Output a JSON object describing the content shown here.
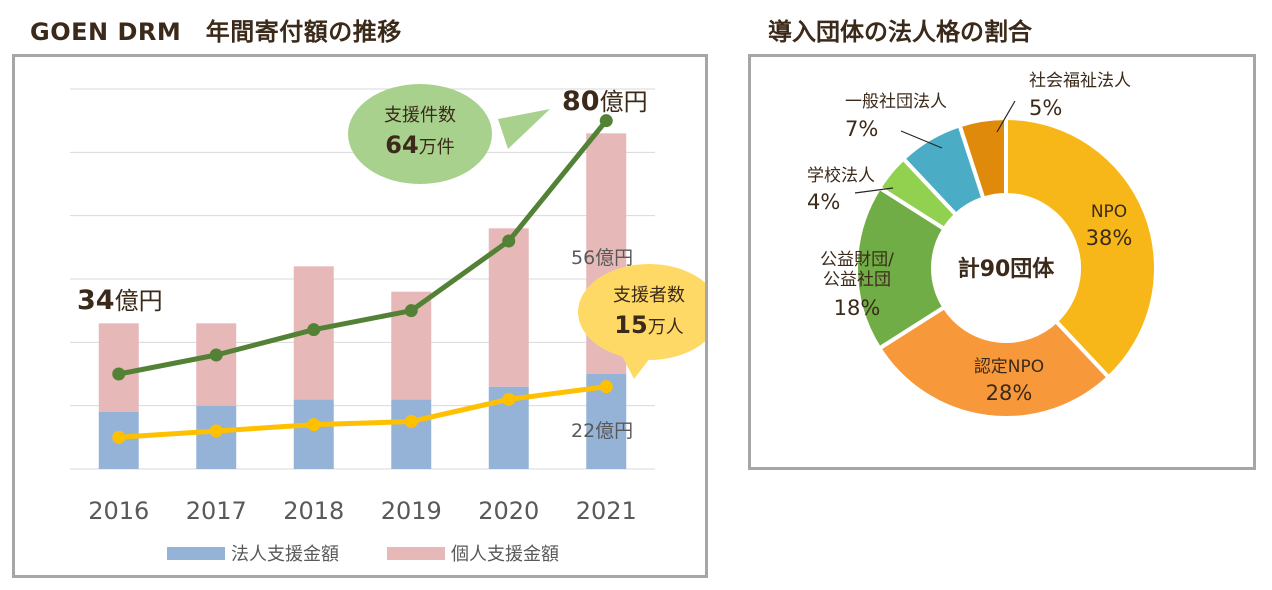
{
  "titles": {
    "left": "GOEN DRM　年間寄付額の推移",
    "right": "導入団体の法人格の割合"
  },
  "chart_data": [
    {
      "type": "bar",
      "stacked": true,
      "title": "GOEN DRM　年間寄付額の推移",
      "categories": [
        "2016",
        "2017",
        "2018",
        "2019",
        "2020",
        "2021"
      ],
      "series": [
        {
          "name": "法人支援金額",
          "color": "#95b3d7",
          "values": [
            9,
            10,
            11,
            11,
            13,
            15
          ]
        },
        {
          "name": "個人支援金額",
          "color": "#e6b9b8",
          "values": [
            14,
            13,
            21,
            17,
            25,
            38
          ]
        }
      ],
      "lines": [
        {
          "name": "支援件数",
          "color": "#538135",
          "values": [
            15,
            18,
            22,
            25,
            36,
            55
          ]
        },
        {
          "name": "支援者数",
          "color": "#ffc000",
          "values": [
            5,
            6,
            7,
            7.5,
            11,
            13
          ]
        }
      ],
      "ylim": [
        0,
        60
      ],
      "gridlines": [
        0,
        10,
        20,
        30,
        40,
        50,
        60
      ],
      "legend_position": "bottom",
      "annotations": {
        "start_total": {
          "num": "34",
          "unit": "億円"
        },
        "end_total": {
          "num": "80",
          "unit": "億円"
        },
        "personal_2021": "56億円",
        "corporate_2021": "22億円",
        "bubble_cases": {
          "label": "支援件数",
          "num": "64",
          "unit": "万件"
        },
        "bubble_donors": {
          "label": "支援者数",
          "num": "15",
          "unit": "万人"
        }
      }
    },
    {
      "type": "pie",
      "donut": true,
      "title": "導入団体の法人格の割合",
      "center_label": "計90団体",
      "slices": [
        {
          "label": "NPO",
          "value": 38,
          "pct": "38%",
          "color": "#f8b719"
        },
        {
          "label": "認定NPO",
          "value": 28,
          "pct": "28%",
          "color": "#f7993b"
        },
        {
          "label": "公益財団/公益社団",
          "label_lines": [
            "公益財団/",
            "公益社団"
          ],
          "value": 18,
          "pct": "18%",
          "color": "#70ad47"
        },
        {
          "label": "学校法人",
          "value": 4,
          "pct": "4%",
          "color": "#92d050"
        },
        {
          "label": "一般社団法人",
          "value": 7,
          "pct": "7%",
          "color": "#4bacc6"
        },
        {
          "label": "社会福祉法人",
          "value": 5,
          "pct": "5%",
          "color": "#e08a0b"
        }
      ]
    }
  ]
}
